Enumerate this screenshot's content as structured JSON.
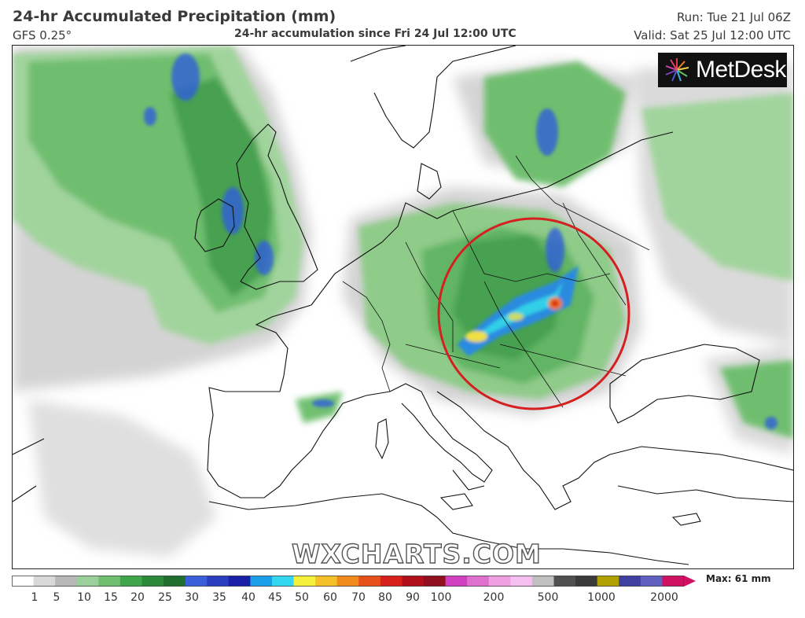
{
  "header": {
    "title": "24-hr Accumulated Precipitation (mm)",
    "model": "GFS 0.25°",
    "subtitle": "24-hr accumulation since Fri 24 Jul 12:00 UTC",
    "run": "Run: Tue 21 Jul 06Z",
    "valid": "Valid: Sat 25 Jul 12:00 UTC"
  },
  "logo": {
    "text": "MetDesk",
    "icon": "metdesk-starburst-icon"
  },
  "watermark": "WXCHARTS.COM",
  "colorbar": {
    "labels": [
      "1",
      "5",
      "10",
      "15",
      "20",
      "25",
      "30",
      "35",
      "40",
      "45",
      "50",
      "60",
      "70",
      "80",
      "90",
      "100",
      "200",
      "500",
      "1000",
      "2000"
    ],
    "colors": [
      "#ffffff",
      "#d9d9d9",
      "#b8b8b8",
      "#9bcf9b",
      "#6fbf6f",
      "#3fa64a",
      "#2a8a3a",
      "#1f6f2f",
      "#3a5fd9",
      "#2a3fbf",
      "#1a1fa8",
      "#1a9fe8",
      "#33d8f0",
      "#f5f03a",
      "#f5c02a",
      "#f08a1a",
      "#e8501a",
      "#d8201a",
      "#b0101a",
      "#901020",
      "#d040c0",
      "#e070d0",
      "#f0a0e0",
      "#f5c0f0",
      "#c0c0c0",
      "#505050",
      "#3a3a3a",
      "#b0a000",
      "#4040a0",
      "#6060c0",
      "#d01060"
    ],
    "max_label": "Max: 61 mm"
  },
  "highlight": {
    "shape": "red-circle",
    "color": "#d42020"
  }
}
